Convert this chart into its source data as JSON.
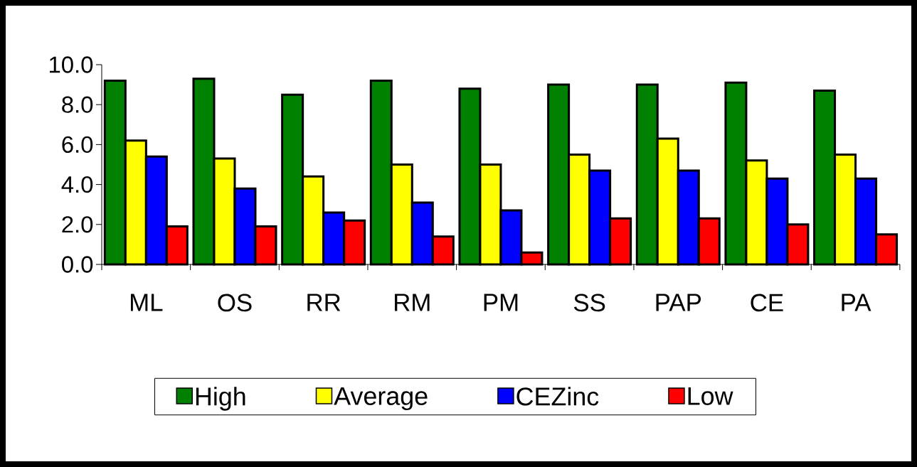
{
  "chart_data": {
    "type": "bar",
    "categories": [
      "ML",
      "OS",
      "RR",
      "RM",
      "PM",
      "SS",
      "PAP",
      "CE",
      "PA"
    ],
    "series": [
      {
        "name": "High",
        "color": "#008000",
        "values": [
          9.2,
          9.3,
          8.5,
          9.2,
          8.8,
          9.0,
          9.0,
          9.1,
          8.7
        ]
      },
      {
        "name": "Average",
        "color": "#ffff00",
        "values": [
          6.2,
          5.3,
          4.4,
          5.0,
          5.0,
          5.5,
          6.3,
          5.2,
          5.5
        ]
      },
      {
        "name": "CEZinc",
        "color": "#0000ff",
        "values": [
          5.4,
          3.8,
          2.6,
          3.1,
          2.7,
          4.7,
          4.7,
          4.3,
          4.3
        ]
      },
      {
        "name": "Low",
        "color": "#ff0000",
        "values": [
          1.9,
          1.9,
          2.2,
          1.4,
          0.6,
          2.3,
          2.3,
          2.0,
          1.5
        ]
      }
    ],
    "ylim": [
      0,
      10
    ],
    "yticks": [
      {
        "value": 0,
        "label": "0.0"
      },
      {
        "value": 2,
        "label": "2.0"
      },
      {
        "value": 4,
        "label": "4.0"
      },
      {
        "value": 6,
        "label": "6.0"
      },
      {
        "value": 8,
        "label": "8.0"
      },
      {
        "value": 10,
        "label": "10.0"
      }
    ],
    "legend": "bottom"
  }
}
